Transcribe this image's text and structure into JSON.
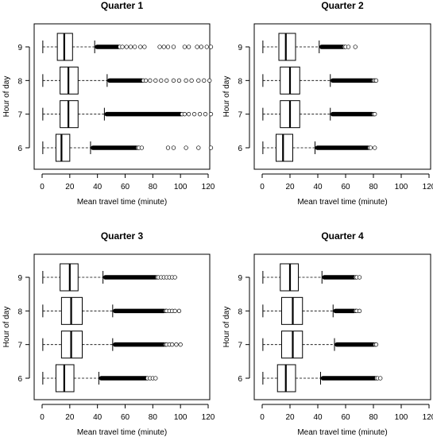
{
  "chart_data": [
    {
      "type": "boxplot",
      "title": "Quarter 1",
      "xlabel": "Mean travel time (minute)",
      "ylabel": "Hour of day",
      "xlim": [
        0,
        120
      ],
      "xticks": [
        0,
        20,
        40,
        60,
        80,
        100,
        120
      ],
      "categories": [
        "6",
        "7",
        "8",
        "9"
      ],
      "boxes": [
        {
          "category": "6",
          "whisker_low": 0.5,
          "q1": 10,
          "median": 14,
          "q3": 20,
          "whisker_high": 35,
          "outlier_dense_end": 68,
          "outliers": [
            70,
            72,
            91,
            95,
            104,
            113,
            122
          ]
        },
        {
          "category": "7",
          "whisker_low": 0.5,
          "q1": 13,
          "median": 19,
          "q3": 26,
          "whisker_high": 45,
          "outlier_dense_end": 100,
          "outliers": [
            103,
            106,
            110,
            114,
            118,
            122
          ]
        },
        {
          "category": "8",
          "whisker_low": 0.5,
          "q1": 13,
          "median": 19,
          "q3": 26,
          "whisker_high": 47,
          "outlier_dense_end": 72,
          "outliers": [
            75,
            78,
            82,
            86,
            90,
            95,
            99,
            104,
            108,
            113,
            117,
            121
          ]
        },
        {
          "category": "9",
          "whisker_low": 0.5,
          "q1": 11,
          "median": 16,
          "q3": 22,
          "whisker_high": 38,
          "outlier_dense_end": 55,
          "outliers": [
            58,
            61,
            64,
            67,
            71,
            74,
            85,
            88,
            91,
            95,
            103,
            106,
            112,
            115,
            119,
            122
          ]
        }
      ]
    },
    {
      "type": "boxplot",
      "title": "Quarter 2",
      "xlabel": "Mean travel time (minute)",
      "ylabel": "Hour of day",
      "xlim": [
        0,
        120
      ],
      "xticks": [
        0,
        20,
        40,
        60,
        80,
        100,
        120
      ],
      "categories": [
        "6",
        "7",
        "8",
        "9"
      ],
      "boxes": [
        {
          "category": "6",
          "whisker_low": 0.5,
          "q1": 10,
          "median": 15,
          "q3": 22,
          "whisker_high": 38,
          "outlier_dense_end": 76,
          "outliers": [
            78,
            81
          ]
        },
        {
          "category": "7",
          "whisker_low": 0.5,
          "q1": 13,
          "median": 20,
          "q3": 27,
          "whisker_high": 49,
          "outlier_dense_end": 79,
          "outliers": [
            81
          ]
        },
        {
          "category": "8",
          "whisker_low": 0.5,
          "q1": 13,
          "median": 20,
          "q3": 27,
          "whisker_high": 49,
          "outlier_dense_end": 79,
          "outliers": [
            81,
            82
          ]
        },
        {
          "category": "9",
          "whisker_low": 0.5,
          "q1": 12,
          "median": 17,
          "q3": 24,
          "whisker_high": 41,
          "outlier_dense_end": 58,
          "outliers": [
            60,
            62,
            67
          ]
        }
      ]
    },
    {
      "type": "boxplot",
      "title": "Quarter 3",
      "xlabel": "Mean travel time (minute)",
      "ylabel": "Hour of day",
      "xlim": [
        0,
        120
      ],
      "xticks": [
        0,
        20,
        40,
        60,
        80,
        100,
        120
      ],
      "categories": [
        "6",
        "7",
        "8",
        "9"
      ],
      "boxes": [
        {
          "category": "6",
          "whisker_low": 0.5,
          "q1": 10,
          "median": 16,
          "q3": 23,
          "whisker_high": 41,
          "outlier_dense_end": 75,
          "outliers": [
            78,
            80,
            82
          ]
        },
        {
          "category": "7",
          "whisker_low": 0.5,
          "q1": 14,
          "median": 21,
          "q3": 29,
          "whisker_high": 51,
          "outlier_dense_end": 88,
          "outliers": [
            90,
            92,
            94,
            97,
            100
          ]
        },
        {
          "category": "8",
          "whisker_low": 0.5,
          "q1": 14,
          "median": 21,
          "q3": 29,
          "whisker_high": 51,
          "outlier_dense_end": 88,
          "outliers": [
            90,
            92,
            94,
            96,
            99
          ]
        },
        {
          "category": "9",
          "whisker_low": 0.5,
          "q1": 13,
          "median": 20,
          "q3": 26,
          "whisker_high": 44,
          "outlier_dense_end": 82,
          "outliers": [
            84,
            86,
            88,
            90,
            92,
            94,
            96
          ]
        }
      ]
    },
    {
      "type": "boxplot",
      "title": "Quarter 4",
      "xlabel": "Mean travel time (minute)",
      "ylabel": "Hour of day",
      "xlim": [
        0,
        120
      ],
      "xticks": [
        0,
        20,
        40,
        60,
        80,
        100,
        120
      ],
      "categories": [
        "6",
        "7",
        "8",
        "9"
      ],
      "boxes": [
        {
          "category": "6",
          "whisker_low": 0.5,
          "q1": 11,
          "median": 17,
          "q3": 24,
          "whisker_high": 42,
          "outlier_dense_end": 81,
          "outliers": [
            83,
            85
          ]
        },
        {
          "category": "7",
          "whisker_low": 0.5,
          "q1": 14,
          "median": 22,
          "q3": 29,
          "whisker_high": 52,
          "outlier_dense_end": 80,
          "outliers": [
            82
          ]
        },
        {
          "category": "8",
          "whisker_low": 0.5,
          "q1": 14,
          "median": 22,
          "q3": 29,
          "whisker_high": 51,
          "outlier_dense_end": 66,
          "outliers": [
            68,
            70
          ]
        },
        {
          "category": "9",
          "whisker_low": 0.5,
          "q1": 13,
          "median": 20,
          "q3": 26,
          "whisker_high": 43,
          "outlier_dense_end": 66,
          "outliers": [
            68,
            70
          ]
        }
      ]
    }
  ]
}
